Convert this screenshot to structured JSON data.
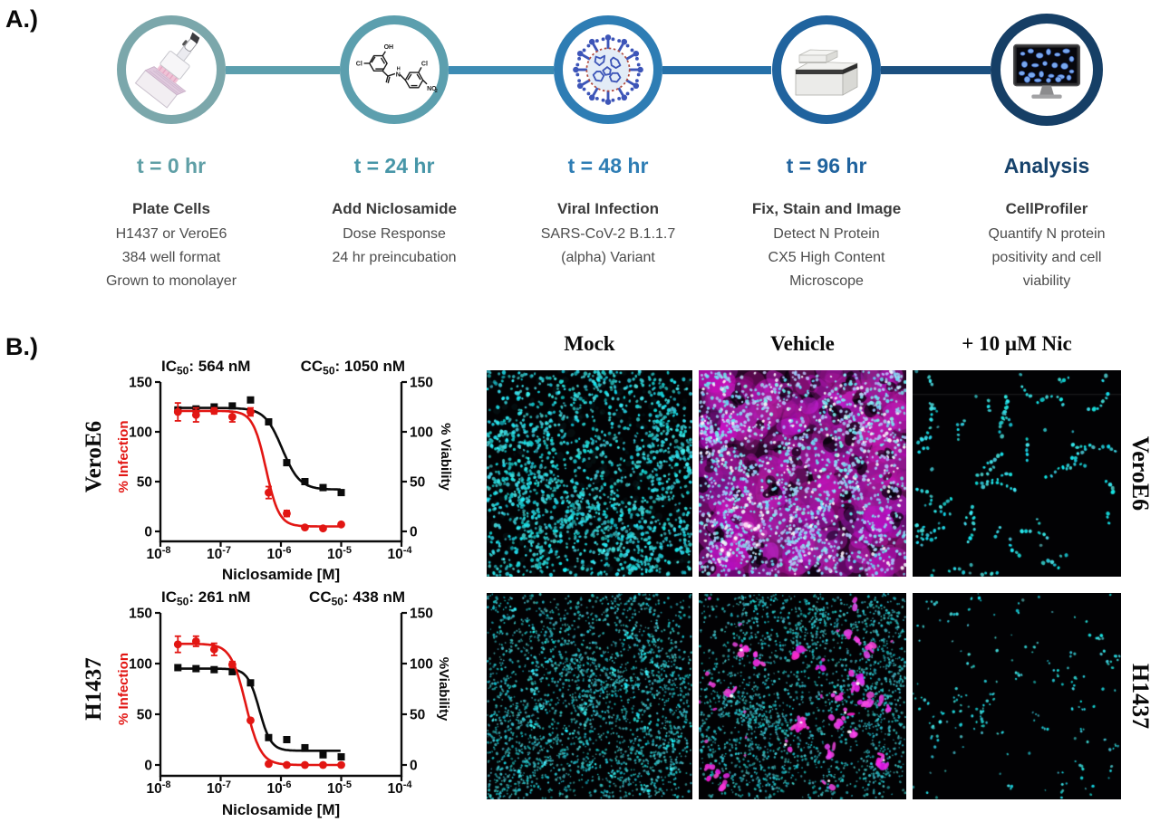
{
  "figure": {
    "panel_a_label": "A.)",
    "panel_b_label": "B.)"
  },
  "panel_a": {
    "steps": [
      {
        "time": "t = 0 hr",
        "title": "Plate Cells",
        "lines": [
          "H1437 or VeroE6",
          "384 well format",
          "Grown to monolayer"
        ],
        "icon": "pipette-plate-icon",
        "ring_color": "#7BA7AB",
        "accent_color": "#5F9FA6"
      },
      {
        "time": "t = 24 hr",
        "title": "Add Niclosamide",
        "lines": [
          "Dose Response",
          "24 hr preincubation"
        ],
        "icon": "niclosamide-structure-icon",
        "ring_color": "#5C9FAE",
        "accent_color": "#4796A8"
      },
      {
        "time": "t = 48 hr",
        "title": "Viral Infection",
        "lines": [
          "SARS-CoV-2 B.1.1.7",
          "(alpha) Variant"
        ],
        "icon": "virus-icon",
        "ring_color": "#2E7DB4",
        "accent_color": "#2E7DB4"
      },
      {
        "time": "t = 96 hr",
        "title": "Fix, Stain and Image",
        "lines": [
          "Detect N Protein",
          "CX5 High Content",
          "Microscope"
        ],
        "icon": "imaging-instrument-icon",
        "ring_color": "#20639E",
        "accent_color": "#20639E"
      },
      {
        "time": "Analysis",
        "title": "CellProfiler",
        "lines": [
          "Quantify N protein",
          "positivity and cell",
          "viability"
        ],
        "icon": "monitor-cells-icon",
        "ring_color": "#163F66",
        "accent_color": "#16426B"
      }
    ],
    "connector_colors": [
      "#5C9FAE",
      "#3D8CB4",
      "#2671A9",
      "#1B5080"
    ]
  },
  "chart_data": [
    {
      "type": "scatter",
      "cell_line": "VeroE6",
      "ic50_label": "IC50: 564 nM",
      "cc50_label": "CC50: 1050 nM",
      "xlabel": "Niclosamide [M]",
      "xlim_log": [
        -8,
        -4
      ],
      "ylim": [
        0,
        150
      ],
      "yticks": [
        0,
        50,
        100,
        150
      ],
      "xtick_exponents": [
        -8,
        -7,
        -6,
        -5,
        -4
      ],
      "x_molar": [
        1.95e-08,
        3.9e-08,
        7.8e-08,
        1.56e-07,
        3.13e-07,
        6.25e-07,
        1.25e-06,
        2.5e-06,
        5e-06,
        1e-05
      ],
      "series": [
        {
          "name": "% Viability",
          "axis": "right",
          "color": "#0b0b0b",
          "marker": "square",
          "values": [
            122,
            123,
            125,
            126,
            132,
            110,
            69,
            50,
            44,
            39
          ],
          "errors": [
            0,
            0,
            0,
            0,
            0,
            0,
            0,
            0,
            0,
            0
          ],
          "fit": {
            "top": 124,
            "bottom": 42,
            "ec50": 1.05e-06,
            "hill": 3.0
          }
        },
        {
          "name": "% Infection",
          "axis": "left",
          "color": "#E21613",
          "marker": "circle",
          "values": [
            120,
            117,
            121,
            115,
            120,
            39,
            18,
            4,
            3,
            7
          ],
          "errors": [
            9,
            7,
            3,
            5,
            4,
            6,
            3,
            0,
            0,
            0
          ],
          "fit": {
            "top": 121,
            "bottom": 5,
            "ec50": 5.64e-07,
            "hill": 4.0
          }
        }
      ]
    },
    {
      "type": "scatter",
      "cell_line": "H1437",
      "ic50_label": "IC50: 261 nM",
      "cc50_label": "CC50: 438 nM",
      "xlabel": "Niclosamide [M]",
      "xlim_log": [
        -8,
        -4
      ],
      "ylim": [
        0,
        150
      ],
      "yticks": [
        0,
        50,
        100,
        150
      ],
      "xtick_exponents": [
        -8,
        -7,
        -6,
        -5,
        -4
      ],
      "x_molar": [
        1.95e-08,
        3.9e-08,
        7.8e-08,
        1.56e-07,
        3.13e-07,
        6.25e-07,
        1.25e-06,
        2.5e-06,
        5e-06,
        1e-05
      ],
      "series": [
        {
          "name": "%Viability",
          "axis": "right",
          "color": "#0b0b0b",
          "marker": "square",
          "values": [
            96,
            95,
            94,
            92,
            81,
            27,
            25,
            17,
            10,
            8
          ],
          "errors": [
            0,
            0,
            0,
            0,
            0,
            0,
            0,
            0,
            0,
            0
          ],
          "fit": {
            "top": 95,
            "bottom": 14,
            "ec50": 4.38e-07,
            "hill": 4.5
          }
        },
        {
          "name": "% Infection",
          "axis": "left",
          "color": "#E21613",
          "marker": "circle",
          "values": [
            119,
            122,
            114,
            99,
            44,
            1,
            0,
            0,
            0,
            0
          ],
          "errors": [
            8,
            5,
            6,
            3,
            0,
            0,
            0,
            0,
            0,
            0
          ],
          "fit": {
            "top": 119.5,
            "bottom": 0,
            "ec50": 2.61e-07,
            "hill": 3.5
          }
        }
      ]
    }
  ],
  "panel_b": {
    "ylabel_left": "% Infection",
    "ylabel_right_top": "% Viability",
    "ylabel_right_bottom": "%Viability",
    "microscopy": {
      "col_headers": [
        "Mock",
        "Vehicle",
        "+ 10 µM Nic"
      ],
      "row_labels": [
        "VeroE6",
        "H1437"
      ],
      "nuclei_color": "#35E0DC",
      "infection_color": "#C21CB8",
      "panels": [
        {
          "row": "VeroE6",
          "col": "Mock",
          "pattern": "dense-nuclei",
          "nuclei": 1900,
          "seed": 7
        },
        {
          "row": "VeroE6",
          "col": "Vehicle",
          "pattern": "dense-nuclei-infected",
          "nuclei": 1900,
          "seed": 11
        },
        {
          "row": "VeroE6",
          "col": "+ 10 µM Nic",
          "pattern": "sparse-clusters",
          "nuclei": 230,
          "seed": 23
        },
        {
          "row": "H1437",
          "col": "Mock",
          "pattern": "dense-small-nuclei",
          "nuclei": 2600,
          "seed": 31
        },
        {
          "row": "H1437",
          "col": "Vehicle",
          "pattern": "dense-small-nuclei-infected",
          "nuclei": 2300,
          "infection_clusters": 25,
          "seed": 41
        },
        {
          "row": "H1437",
          "col": "+ 10 µM Nic",
          "pattern": "sparse-small",
          "nuclei": 250,
          "seed": 53
        }
      ]
    }
  }
}
